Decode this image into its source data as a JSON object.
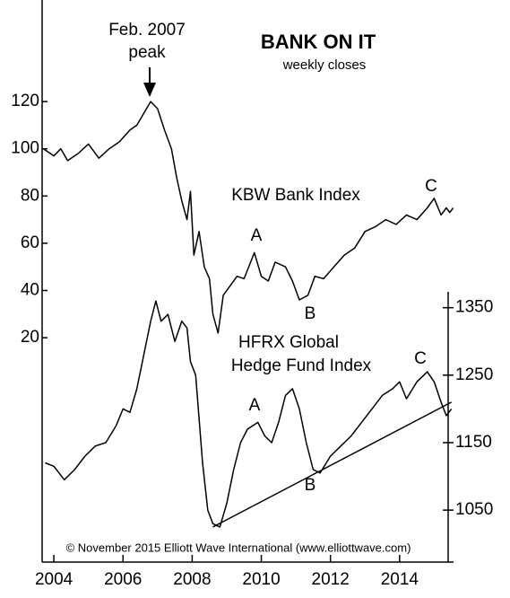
{
  "chart_data": {
    "type": "line",
    "title": "BANK ON IT",
    "subtitle": "weekly closes",
    "annotations": [
      "Feb. 2007",
      "peak",
      "KBW Bank Index",
      "A",
      "B",
      "C",
      "HFRX Global",
      "Hedge Fund Index",
      "A",
      "B",
      "C",
      "© November 2015 Elliott Wave International (www.elliottwave.com)"
    ],
    "xlim": [
      2003.66,
      2015.56
    ],
    "xticks": [
      2004,
      2006,
      2008,
      2010,
      2012,
      2014
    ],
    "ylim": [
      -75,
      163
    ],
    "yticks": [
      20,
      40,
      60,
      80,
      100,
      120
    ],
    "y2lim": [
      973,
      1806
    ],
    "y2ticks": [
      1050,
      1150,
      1250,
      1350
    ],
    "series": [
      {
        "name": "KBW Bank Index",
        "color": "#000000",
        "x": [
          2003.7,
          2004.0,
          2004.2,
          2004.4,
          2004.7,
          2005.0,
          2005.3,
          2005.6,
          2005.9,
          2006.2,
          2006.4,
          2006.6,
          2006.8,
          2007.0,
          2007.2,
          2007.4,
          2007.55,
          2007.7,
          2007.85,
          2007.95,
          2008.05,
          2008.2,
          2008.35,
          2008.5,
          2008.6,
          2008.75,
          2008.9,
          2009.1,
          2009.3,
          2009.5,
          2009.8,
          2010.0,
          2010.2,
          2010.4,
          2010.7,
          2010.9,
          2011.1,
          2011.35,
          2011.55,
          2011.8,
          2012.1,
          2012.4,
          2012.7,
          2013.0,
          2013.3,
          2013.6,
          2013.9,
          2014.2,
          2014.5,
          2014.8,
          2015.0,
          2015.2,
          2015.35,
          2015.45,
          2015.55
        ],
        "values": [
          100,
          97,
          100,
          95,
          98,
          102,
          96,
          100,
          103,
          108,
          110,
          115,
          120,
          117,
          108,
          100,
          88,
          78,
          70,
          82,
          55,
          65,
          50,
          45,
          30,
          22,
          38,
          42,
          46,
          45,
          56,
          46,
          44,
          52,
          50,
          44,
          36,
          38,
          46,
          45,
          50,
          55,
          58,
          65,
          67,
          70,
          68,
          72,
          70,
          75,
          79,
          72,
          75,
          73,
          75
        ]
      },
      {
        "name": "HFRX Global Hedge Fund Index",
        "color": "#000000",
        "axis": "y2",
        "x": [
          2003.75,
          2004.0,
          2004.3,
          2004.6,
          2004.9,
          2005.2,
          2005.5,
          2005.8,
          2006.0,
          2006.2,
          2006.4,
          2006.6,
          2006.8,
          2006.95,
          2007.1,
          2007.3,
          2007.5,
          2007.7,
          2007.85,
          2007.95,
          2008.1,
          2008.3,
          2008.45,
          2008.6,
          2008.8,
          2009.0,
          2009.2,
          2009.4,
          2009.6,
          2009.9,
          2010.1,
          2010.3,
          2010.5,
          2010.7,
          2010.9,
          2011.1,
          2011.3,
          2011.5,
          2011.7,
          2012.0,
          2012.3,
          2012.6,
          2012.9,
          2013.2,
          2013.5,
          2013.8,
          2014.0,
          2014.2,
          2014.5,
          2014.8,
          2015.0,
          2015.2,
          2015.35,
          2015.5
        ],
        "values": [
          1120,
          1115,
          1095,
          1110,
          1130,
          1145,
          1150,
          1175,
          1200,
          1195,
          1230,
          1280,
          1330,
          1360,
          1330,
          1340,
          1300,
          1330,
          1320,
          1270,
          1250,
          1120,
          1050,
          1030,
          1025,
          1060,
          1110,
          1150,
          1170,
          1180,
          1160,
          1150,
          1180,
          1220,
          1230,
          1200,
          1150,
          1110,
          1105,
          1130,
          1145,
          1160,
          1180,
          1200,
          1220,
          1230,
          1240,
          1215,
          1240,
          1255,
          1240,
          1210,
          1190,
          1200
        ]
      }
    ],
    "trendline": {
      "x": [
        2008.6,
        2015.5
      ],
      "values": [
        1025,
        1210
      ]
    }
  }
}
